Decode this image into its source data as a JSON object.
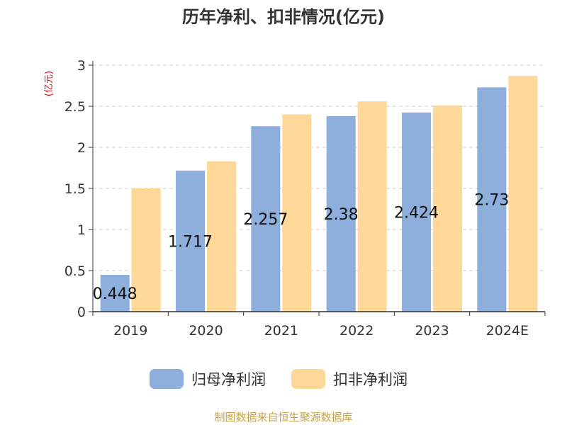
{
  "chart_data": {
    "type": "bar",
    "title": "历年净利、扣非情况(亿元)",
    "ylabel": "(亿元)",
    "xlabel": "",
    "categories": [
      "2019",
      "2020",
      "2021",
      "2022",
      "2023",
      "2024E"
    ],
    "ylim": [
      0,
      3
    ],
    "yticks": [
      "0",
      "0.5",
      "1",
      "1.5",
      "2",
      "2.5",
      "3"
    ],
    "grid": true,
    "legend_position": "bottom-center",
    "series": [
      {
        "name": "归母净利润",
        "color": "#8eaedb",
        "values": [
          0.448,
          1.717,
          2.257,
          2.38,
          2.424,
          2.73
        ],
        "data_labels": [
          "0.448",
          "1.717",
          "2.257",
          "2.38",
          "2.424",
          "2.73"
        ]
      },
      {
        "name": "扣非净利润",
        "color": "#fed898",
        "values": [
          1.5,
          1.83,
          2.4,
          2.56,
          2.51,
          2.87
        ],
        "data_labels": []
      }
    ]
  },
  "footer": {
    "source": "制图数据来自恒生聚源数据库",
    "color": "#c8a24a"
  },
  "colors": {
    "ylabel": "#e00000",
    "axis": "#333333",
    "grid": "#cccccc"
  }
}
